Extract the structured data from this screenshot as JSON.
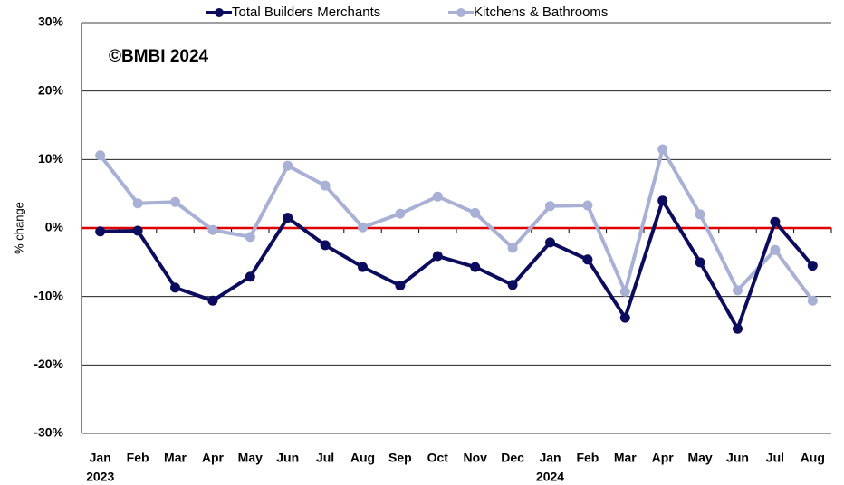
{
  "chart_data": {
    "type": "line",
    "annotation": "©BMBI 2024",
    "y_label": "% change",
    "categories": [
      "Jan",
      "Feb",
      "Mar",
      "Apr",
      "May",
      "Jun",
      "Jul",
      "Aug",
      "Sep",
      "Oct",
      "Nov",
      "Dec",
      "Jan",
      "Feb",
      "Mar",
      "Apr",
      "May",
      "Jun",
      "Jul",
      "Aug"
    ],
    "category_groups": [
      {
        "name": "2023",
        "count": 12
      },
      {
        "name": "2024",
        "count": 8
      }
    ],
    "series": [
      {
        "name": "Total Builders Merchants",
        "color": "#0c0c5e",
        "values": [
          -0.5,
          -0.4,
          -8.7,
          -10.6,
          -7.1,
          1.5,
          -2.5,
          -5.7,
          -8.4,
          -4.1,
          -5.7,
          -8.3,
          -2.1,
          -4.6,
          -13.1,
          4.0,
          -5.0,
          -14.7,
          0.9,
          -5.5
        ]
      },
      {
        "name": "Kitchens & Bathrooms",
        "color": "#a9b0d6",
        "values": [
          10.6,
          3.6,
          3.8,
          -0.3,
          -1.3,
          9.1,
          6.2,
          0.1,
          2.1,
          4.6,
          2.2,
          -2.9,
          3.2,
          3.3,
          -9.3,
          11.5,
          2.0,
          -9.1,
          -3.2,
          -10.6
        ]
      }
    ],
    "ylim": [
      -30,
      30
    ],
    "yticks": [
      {
        "value": -30,
        "label": "-30%"
      },
      {
        "value": -20,
        "label": "-20%"
      },
      {
        "value": -10,
        "label": "-10%"
      },
      {
        "value": 0,
        "label": "0%"
      },
      {
        "value": 10,
        "label": "10%"
      },
      {
        "value": 20,
        "label": "20%"
      },
      {
        "value": 30,
        "label": "30%"
      }
    ],
    "grid": true,
    "zero_line_color": "#e00000",
    "legend": "top"
  }
}
